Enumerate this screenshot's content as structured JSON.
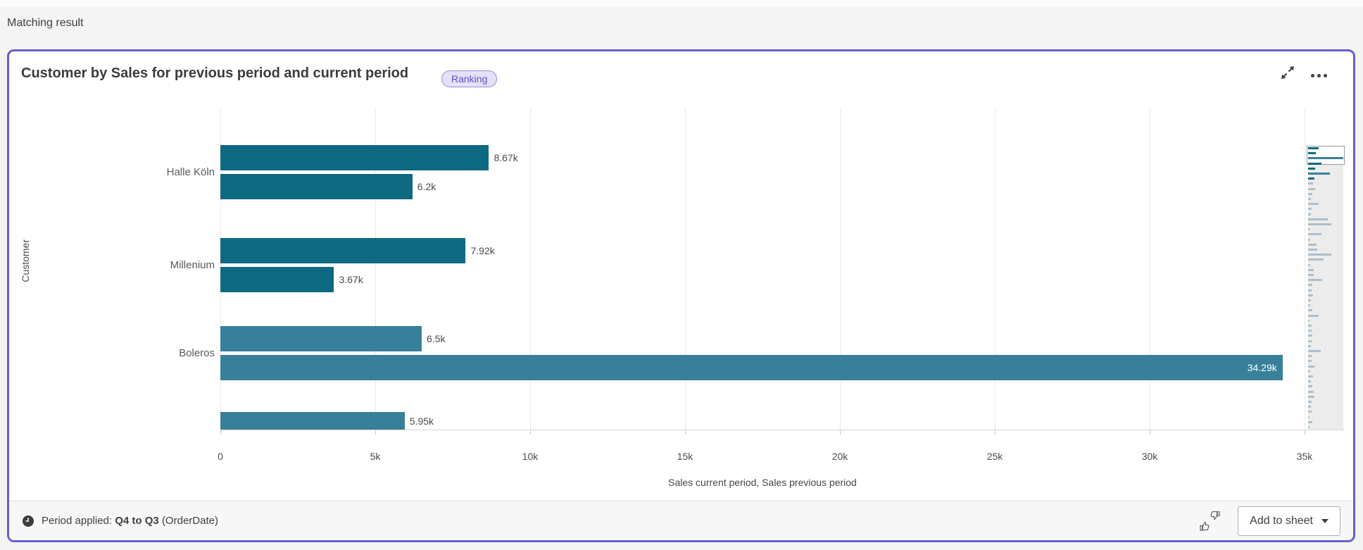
{
  "page": {
    "heading": "Matching result"
  },
  "card": {
    "title": "Customer by Sales for previous period and current period",
    "badge_label": "Ranking",
    "icons": {
      "expand": "expand-icon",
      "more": "more-options-icon"
    }
  },
  "chart_data": {
    "type": "bar",
    "orientation": "horizontal",
    "title": "Customer by Sales for previous period and current period",
    "xlabel": "Sales current period, Sales previous period",
    "ylabel": "Customer",
    "xlim": [
      0,
      35000
    ],
    "x_tick_labels": [
      "0",
      "5k",
      "10k",
      "15k",
      "20k",
      "25k",
      "30k",
      "35k"
    ],
    "x_tick_values": [
      0,
      5000,
      10000,
      15000,
      20000,
      25000,
      30000,
      35000
    ],
    "series_names": [
      "Sales current period",
      "Sales previous period"
    ],
    "categories": [
      "Halle Köln",
      "Millenium",
      "Boleros",
      ""
    ],
    "groups": [
      {
        "category": "Halle Köln",
        "color": "dark",
        "bars": [
          {
            "value": 8670,
            "label": "8.67k"
          },
          {
            "value": 6200,
            "label": "6.2k"
          }
        ]
      },
      {
        "category": "Millenium",
        "color": "dark",
        "bars": [
          {
            "value": 7920,
            "label": "7.92k"
          },
          {
            "value": 3670,
            "label": "3.67k"
          }
        ]
      },
      {
        "category": "Boleros",
        "color": "light",
        "bars": [
          {
            "value": 6500,
            "label": "6.5k"
          },
          {
            "value": 34290,
            "label": "34.29k",
            "label_inside": true
          }
        ]
      },
      {
        "category": "",
        "color": "light",
        "clipped": true,
        "bars": [
          {
            "value": 5950,
            "label": "5.95k"
          }
        ]
      }
    ],
    "colors": {
      "dark": "#0f6980",
      "light": "#38809a",
      "minimap_gray": "#adbecb"
    },
    "grid": true,
    "legend": "none",
    "minimap": {
      "viewport_bars": 3,
      "bars": [
        [
          30,
          "d"
        ],
        [
          22,
          "d"
        ],
        [
          100,
          "l"
        ],
        [
          38,
          "d"
        ],
        [
          20,
          "d"
        ],
        [
          62,
          "l"
        ],
        [
          18,
          "d"
        ],
        [
          14,
          "g"
        ],
        [
          20,
          "g"
        ],
        [
          12,
          "g"
        ],
        [
          8,
          "g"
        ],
        [
          30,
          "g"
        ],
        [
          10,
          "g"
        ],
        [
          8,
          "g"
        ],
        [
          56,
          "g"
        ],
        [
          66,
          "g"
        ],
        [
          5,
          "g"
        ],
        [
          38,
          "g"
        ],
        [
          5,
          "g"
        ],
        [
          24,
          "g"
        ],
        [
          26,
          "g"
        ],
        [
          66,
          "g"
        ],
        [
          44,
          "g"
        ],
        [
          6,
          "g"
        ],
        [
          15,
          "g"
        ],
        [
          15,
          "g"
        ],
        [
          40,
          "g"
        ],
        [
          12,
          "g"
        ],
        [
          10,
          "g"
        ],
        [
          14,
          "g"
        ],
        [
          8,
          "g"
        ],
        [
          5,
          "g"
        ],
        [
          12,
          "g"
        ],
        [
          30,
          "g"
        ],
        [
          4,
          "g"
        ],
        [
          10,
          "g"
        ],
        [
          10,
          "g"
        ],
        [
          12,
          "g"
        ],
        [
          10,
          "g"
        ],
        [
          8,
          "g"
        ],
        [
          35,
          "g"
        ],
        [
          10,
          "g"
        ],
        [
          10,
          "g"
        ],
        [
          18,
          "g"
        ],
        [
          6,
          "g"
        ],
        [
          14,
          "g"
        ],
        [
          8,
          "g"
        ],
        [
          12,
          "g"
        ],
        [
          16,
          "g"
        ],
        [
          18,
          "g"
        ],
        [
          10,
          "g"
        ],
        [
          8,
          "g"
        ],
        [
          10,
          "g"
        ],
        [
          4,
          "g"
        ],
        [
          12,
          "g"
        ],
        [
          4,
          "g"
        ]
      ]
    }
  },
  "footer": {
    "period_icon": "clock-icon",
    "period_prefix": "Period applied:",
    "period_value": "Q4 to Q3",
    "period_suffix": "(OrderDate)",
    "feedback_icon": "thumbs-feedback-icon",
    "add_to_sheet_label": "Add to sheet"
  }
}
